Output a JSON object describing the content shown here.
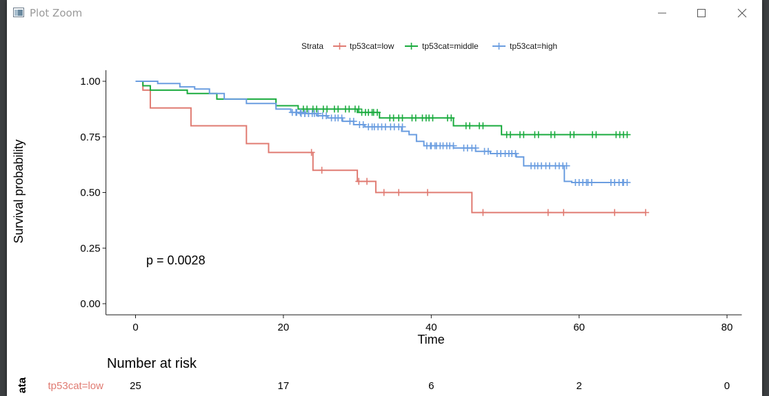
{
  "window": {
    "title": "Plot Zoom",
    "controls": {
      "minimize": "minimize",
      "maximize": "maximize",
      "close": "close"
    }
  },
  "colors": {
    "low": "#e07b72",
    "middle": "#1aab3e",
    "high": "#6a9de0",
    "axis": "#1a1a1a"
  },
  "chart_data": {
    "type": "survival-step",
    "title": "",
    "xlabel": "Time",
    "ylabel": "Survival probability",
    "xlim": [
      -4,
      82
    ],
    "ylim": [
      -0.05,
      1.05
    ],
    "x_ticks": [
      0,
      20,
      40,
      60,
      80
    ],
    "x_tick_labels": [
      "0",
      "20",
      "40",
      "60",
      "80"
    ],
    "y_ticks": [
      0,
      0.25,
      0.5,
      0.75,
      1.0
    ],
    "y_tick_labels": [
      "0.00",
      "0.25",
      "0.50",
      "0.75",
      "1.00"
    ],
    "legend_title": "Strata",
    "legend_position": "top",
    "pvalue_text": "p = 0.0028",
    "series": [
      {
        "name": "tp53cat=low",
        "color_key": "low",
        "steps": [
          [
            0,
            1.0
          ],
          [
            1,
            0.96
          ],
          [
            2,
            0.88
          ],
          [
            7.5,
            0.8
          ],
          [
            15,
            0.72
          ],
          [
            18,
            0.68
          ],
          [
            24,
            0.6
          ],
          [
            30,
            0.55
          ],
          [
            32.5,
            0.5
          ],
          [
            45.5,
            0.41
          ],
          [
            69,
            0.41
          ]
        ],
        "censors": [
          [
            23.8,
            0.68
          ],
          [
            25.2,
            0.6
          ],
          [
            30.2,
            0.55
          ],
          [
            31.3,
            0.55
          ],
          [
            33.6,
            0.5
          ],
          [
            35.6,
            0.5
          ],
          [
            39.5,
            0.5
          ],
          [
            47,
            0.41
          ],
          [
            55.8,
            0.41
          ],
          [
            57.9,
            0.41
          ],
          [
            64.8,
            0.41
          ],
          [
            69,
            0.41
          ]
        ]
      },
      {
        "name": "tp53cat=middle",
        "color_key": "middle",
        "steps": [
          [
            0,
            1.0
          ],
          [
            1,
            0.98
          ],
          [
            2,
            0.96
          ],
          [
            7,
            0.945
          ],
          [
            11,
            0.92
          ],
          [
            19,
            0.89
          ],
          [
            22,
            0.875
          ],
          [
            30,
            0.86
          ],
          [
            33,
            0.835
          ],
          [
            40,
            0.835
          ],
          [
            43,
            0.8
          ],
          [
            49.5,
            0.76
          ],
          [
            66,
            0.76
          ]
        ],
        "censors": [
          [
            22.7,
            0.875
          ],
          [
            24,
            0.875
          ],
          [
            25.4,
            0.875
          ],
          [
            26.9,
            0.875
          ],
          [
            28.4,
            0.875
          ],
          [
            29.7,
            0.875
          ],
          [
            30.6,
            0.86
          ],
          [
            31.5,
            0.86
          ],
          [
            32.2,
            0.86
          ],
          [
            34.4,
            0.835
          ],
          [
            35.6,
            0.835
          ],
          [
            37.4,
            0.835
          ],
          [
            38.8,
            0.835
          ],
          [
            39.7,
            0.835
          ],
          [
            42.2,
            0.835
          ],
          [
            44.7,
            0.8
          ],
          [
            46.5,
            0.8
          ],
          [
            50.2,
            0.76
          ],
          [
            52,
            0.76
          ],
          [
            54,
            0.76
          ],
          [
            56.2,
            0.76
          ],
          [
            58.8,
            0.76
          ],
          [
            61.8,
            0.76
          ],
          [
            65,
            0.76
          ],
          [
            66,
            0.76
          ]
        ],
        "censor_dx": 0.5
      },
      {
        "name": "tp53cat=high",
        "color_key": "high",
        "steps": [
          [
            0,
            1.0
          ],
          [
            3,
            0.99
          ],
          [
            6,
            0.975
          ],
          [
            8,
            0.965
          ],
          [
            10,
            0.945
          ],
          [
            12,
            0.92
          ],
          [
            15,
            0.9
          ],
          [
            19,
            0.875
          ],
          [
            21,
            0.86
          ],
          [
            23,
            0.855
          ],
          [
            24.5,
            0.845
          ],
          [
            26,
            0.835
          ],
          [
            28,
            0.82
          ],
          [
            29.5,
            0.805
          ],
          [
            31,
            0.795
          ],
          [
            36,
            0.775
          ],
          [
            37,
            0.76
          ],
          [
            38,
            0.73
          ],
          [
            39,
            0.71
          ],
          [
            43,
            0.7
          ],
          [
            46,
            0.685
          ],
          [
            48,
            0.675
          ],
          [
            51.5,
            0.66
          ],
          [
            52.5,
            0.62
          ],
          [
            58,
            0.55
          ],
          [
            59,
            0.545
          ],
          [
            66,
            0.545
          ]
        ],
        "censors": [
          [
            21.2,
            0.86
          ],
          [
            21.8,
            0.86
          ],
          [
            22.4,
            0.855
          ],
          [
            22.9,
            0.855
          ],
          [
            23.4,
            0.855
          ],
          [
            24.2,
            0.855
          ],
          [
            25.3,
            0.845
          ],
          [
            26.5,
            0.835
          ],
          [
            27.4,
            0.835
          ],
          [
            29,
            0.82
          ],
          [
            30.3,
            0.805
          ],
          [
            31.5,
            0.795
          ],
          [
            32.3,
            0.795
          ],
          [
            33.3,
            0.795
          ],
          [
            34.5,
            0.795
          ],
          [
            35.6,
            0.795
          ],
          [
            39.4,
            0.71
          ],
          [
            40,
            0.71
          ],
          [
            40.7,
            0.71
          ],
          [
            41.6,
            0.71
          ],
          [
            42.5,
            0.71
          ],
          [
            44.4,
            0.7
          ],
          [
            45.5,
            0.7
          ],
          [
            47.2,
            0.685
          ],
          [
            48.9,
            0.675
          ],
          [
            50,
            0.675
          ],
          [
            50.9,
            0.675
          ],
          [
            53.5,
            0.62
          ],
          [
            54.4,
            0.62
          ],
          [
            55.5,
            0.62
          ],
          [
            56.8,
            0.62
          ],
          [
            57.8,
            0.62
          ],
          [
            59.5,
            0.545
          ],
          [
            60.5,
            0.545
          ],
          [
            61.2,
            0.545
          ],
          [
            64.3,
            0.545
          ],
          [
            65.4,
            0.545
          ],
          [
            66,
            0.545
          ]
        ],
        "censor_dx": 0.5
      }
    ],
    "risk_table": {
      "title": "Number at risk",
      "ylabel_fragment": "ata",
      "times": [
        0,
        20,
        40,
        60,
        80
      ],
      "rows": [
        {
          "label": "tp53cat=low",
          "color_key": "low",
          "counts": [
            "25",
            "17",
            "6",
            "2",
            "0"
          ]
        }
      ]
    }
  }
}
